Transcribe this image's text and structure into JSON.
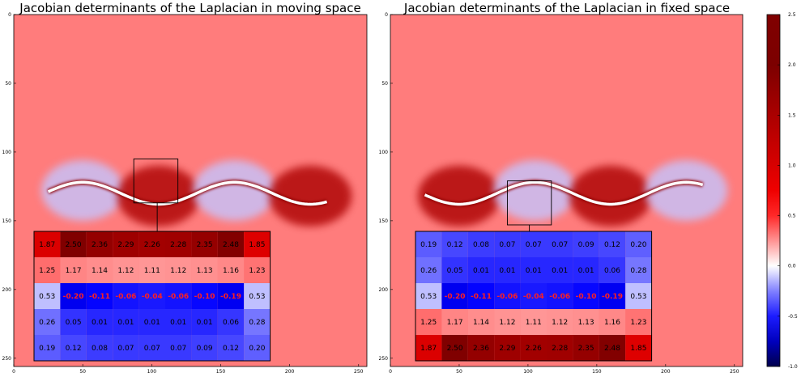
{
  "chart_data": [
    {
      "type": "heatmap",
      "title": "Jacobian determinants of the Laplacian in moving space",
      "x_ticks": [
        0,
        50,
        100,
        150,
        200,
        250
      ],
      "y_ticks": [
        0,
        50,
        100,
        150,
        200,
        250
      ],
      "xlim": [
        0,
        256
      ],
      "ylim": [
        256,
        0
      ],
      "background_value": 1.2,
      "wave": "valleys (low values) below interface around x≈50 and x≈160; peaks above around x≈110 and x≈215",
      "inset": {
        "zoom_box": [
          87,
          105,
          119,
          137
        ],
        "anchor": [
          104,
          137
        ],
        "rows": [
          [
            1.87,
            2.5,
            2.36,
            2.29,
            2.26,
            2.28,
            2.35,
            2.48,
            1.85
          ],
          [
            1.25,
            1.17,
            1.14,
            1.12,
            1.11,
            1.12,
            1.13,
            1.16,
            1.23
          ],
          [
            0.53,
            -0.2,
            -0.11,
            -0.06,
            -0.04,
            -0.06,
            -0.1,
            -0.19,
            0.53
          ],
          [
            0.26,
            0.05,
            0.01,
            0.01,
            0.01,
            0.01,
            0.01,
            0.06,
            0.28
          ],
          [
            0.19,
            0.12,
            0.08,
            0.07,
            0.07,
            0.07,
            0.09,
            0.12,
            0.2
          ]
        ]
      }
    },
    {
      "type": "heatmap",
      "title": "Jacobian determinants of the Laplacian in fixed space",
      "x_ticks": [
        0,
        50,
        100,
        150,
        200,
        250
      ],
      "y_ticks": [
        0,
        50,
        100,
        150,
        200,
        250
      ],
      "xlim": [
        0,
        256
      ],
      "ylim": [
        256,
        0
      ],
      "background_value": 1.2,
      "wave": "peaks (low values) above interface around x≈50 and x≈160; valleys below around x≈110 and x≈215",
      "inset": {
        "zoom_box": [
          85,
          121,
          117,
          153
        ],
        "anchor": [
          101,
          153
        ],
        "rows": [
          [
            0.19,
            0.12,
            0.08,
            0.07,
            0.07,
            0.07,
            0.09,
            0.12,
            0.2
          ],
          [
            0.26,
            0.05,
            0.01,
            0.01,
            0.01,
            0.01,
            0.01,
            0.06,
            0.28
          ],
          [
            0.53,
            -0.2,
            -0.11,
            -0.06,
            -0.04,
            -0.06,
            -0.1,
            -0.19,
            0.53
          ],
          [
            1.25,
            1.17,
            1.14,
            1.12,
            1.11,
            1.12,
            1.13,
            1.16,
            1.23
          ],
          [
            1.87,
            2.5,
            2.36,
            2.29,
            2.26,
            2.28,
            2.35,
            2.48,
            1.85
          ]
        ]
      }
    }
  ],
  "colorbar": {
    "cmap": "seismic",
    "vmin": -1.0,
    "vmax": 2.5,
    "ticks": [
      2.5,
      2.0,
      1.5,
      1.0,
      0.5,
      0.0,
      -0.5,
      -1.0
    ],
    "tick_labels": [
      "2.5",
      "2.0",
      "1.5",
      "1.0",
      "0.5",
      "0.0",
      "-0.5",
      "-1.0"
    ]
  }
}
